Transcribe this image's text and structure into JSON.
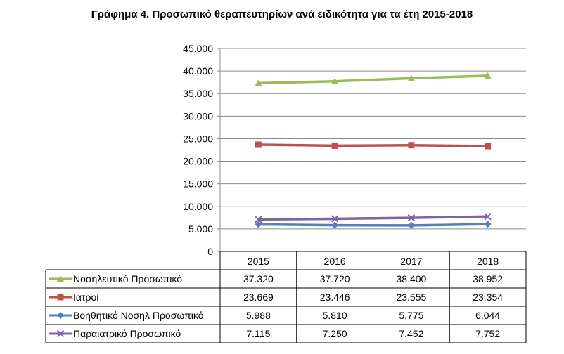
{
  "title": "Γράφημα 4. Προσωπικό θεραπευτηρίων ανά ειδικότητα για τα έτη 2015-2018",
  "chart_data": {
    "type": "line",
    "title": "Γράφημα 4. Προσωπικό θεραπευτηρίων ανά ειδικότητα για τα έτη 2015-2018",
    "categories": [
      "2015",
      "2016",
      "2017",
      "2018"
    ],
    "ylim": [
      0,
      45000
    ],
    "yticks": [
      "0",
      "5.000",
      "10.000",
      "15.000",
      "20.000",
      "25.000",
      "30.000",
      "35.000",
      "40.000",
      "45.000"
    ],
    "ytick_values": [
      0,
      5000,
      10000,
      15000,
      20000,
      25000,
      30000,
      35000,
      40000,
      45000
    ],
    "grid": true,
    "legend": "data-table",
    "series": [
      {
        "name": "Νοσηλευτικό Προσωπικό",
        "values": [
          37320,
          37720,
          38400,
          38952
        ],
        "labels": [
          "37.320",
          "37.720",
          "38.400",
          "38.952"
        ],
        "color": "#9BBB59",
        "marker": "triangle"
      },
      {
        "name": "Ιατροί",
        "values": [
          23669,
          23446,
          23555,
          23354
        ],
        "labels": [
          "23.669",
          "23.446",
          "23.555",
          "23.354"
        ],
        "color": "#C0504D",
        "marker": "square"
      },
      {
        "name": "Βοηθητικό Νοσηλ Προσωπικό",
        "values": [
          5988,
          5810,
          5775,
          6044
        ],
        "labels": [
          "5.988",
          "5.810",
          "5.775",
          "6.044"
        ],
        "color": "#4F81BD",
        "marker": "diamond"
      },
      {
        "name": "Παραιατρικό Προσωπικό",
        "values": [
          7115,
          7250,
          7452,
          7752
        ],
        "labels": [
          "7.115",
          "7.250",
          "7.452",
          "7.752"
        ],
        "color": "#8064A2",
        "marker": "x"
      }
    ]
  }
}
